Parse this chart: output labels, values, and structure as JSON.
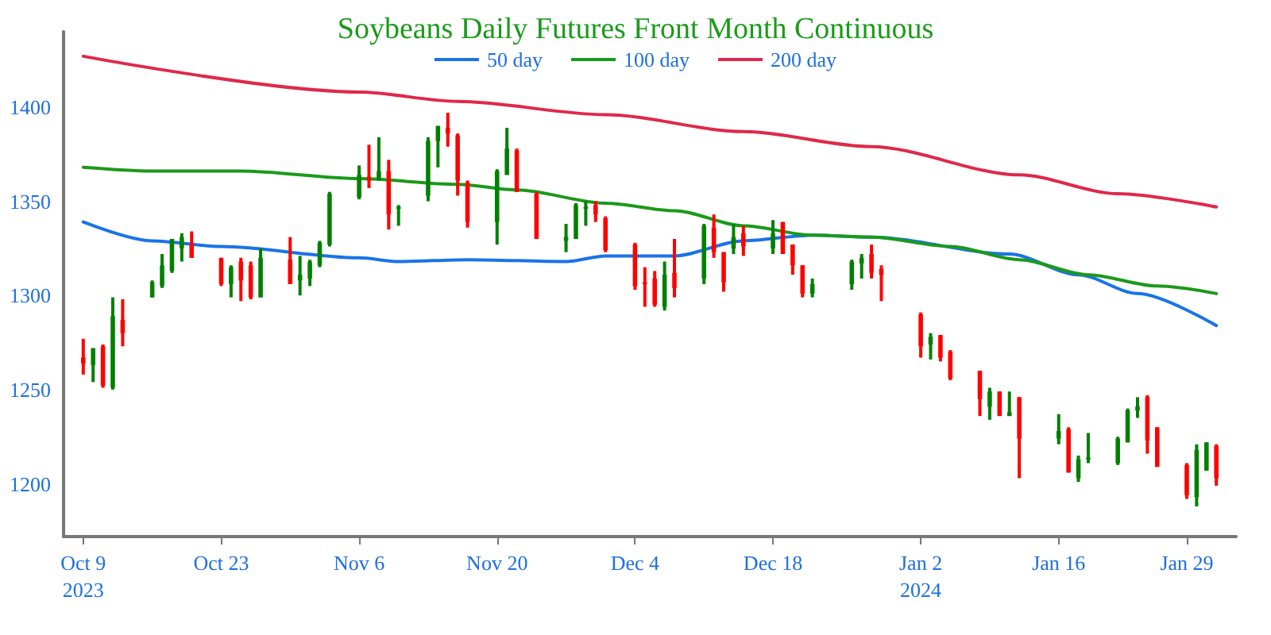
{
  "chart_data": {
    "type": "candlestick",
    "title": "Soybeans Daily Futures Front Month Continuous",
    "x": [
      "2023-10-09",
      "2023-10-10",
      "2023-10-11",
      "2023-10-12",
      "2023-10-13",
      "2023-10-16",
      "2023-10-17",
      "2023-10-18",
      "2023-10-19",
      "2023-10-20",
      "2023-10-23",
      "2023-10-24",
      "2023-10-25",
      "2023-10-26",
      "2023-10-27",
      "2023-10-30",
      "2023-10-31",
      "2023-11-01",
      "2023-11-02",
      "2023-11-03",
      "2023-11-06",
      "2023-11-07",
      "2023-11-08",
      "2023-11-09",
      "2023-11-10",
      "2023-11-13",
      "2023-11-14",
      "2023-11-15",
      "2023-11-16",
      "2023-11-17",
      "2023-11-20",
      "2023-11-21",
      "2023-11-22",
      "2023-11-24",
      "2023-11-27",
      "2023-11-28",
      "2023-11-29",
      "2023-11-30",
      "2023-12-01",
      "2023-12-04",
      "2023-12-05",
      "2023-12-06",
      "2023-12-07",
      "2023-12-08",
      "2023-12-11",
      "2023-12-12",
      "2023-12-13",
      "2023-12-14",
      "2023-12-15",
      "2023-12-18",
      "2023-12-19",
      "2023-12-20",
      "2023-12-21",
      "2023-12-22",
      "2023-12-26",
      "2023-12-27",
      "2023-12-28",
      "2023-12-29",
      "2024-01-02",
      "2024-01-03",
      "2024-01-04",
      "2024-01-05",
      "2024-01-08",
      "2024-01-09",
      "2024-01-10",
      "2024-01-11",
      "2024-01-12",
      "2024-01-16",
      "2024-01-17",
      "2024-01-18",
      "2024-01-19",
      "2024-01-22",
      "2024-01-23",
      "2024-01-24",
      "2024-01-25",
      "2024-01-26",
      "2024-01-29",
      "2024-01-30",
      "2024-01-31",
      "2024-02-01"
    ],
    "ohlc": [
      [
        1267,
        1277,
        1258,
        1264
      ],
      [
        1263,
        1272,
        1254,
        1272
      ],
      [
        1273,
        1274,
        1251,
        1252
      ],
      [
        1251,
        1299,
        1250,
        1289
      ],
      [
        1287,
        1298,
        1273,
        1280
      ],
      [
        1299,
        1308,
        1299,
        1307
      ],
      [
        1305,
        1322,
        1304,
        1316
      ],
      [
        1313,
        1330,
        1312,
        1330
      ],
      [
        1325,
        1333,
        1318,
        1331
      ],
      [
        1327,
        1334,
        1320,
        1320
      ],
      [
        1320,
        1320,
        1305,
        1306
      ],
      [
        1306,
        1316,
        1299,
        1315
      ],
      [
        1318,
        1320,
        1297,
        1308
      ],
      [
        1316,
        1318,
        1298,
        1299
      ],
      [
        1299,
        1325,
        1299,
        1320
      ],
      [
        1319,
        1331,
        1306,
        1306
      ],
      [
        1308,
        1321,
        1300,
        1311
      ],
      [
        1309,
        1319,
        1305,
        1318
      ],
      [
        1316,
        1329,
        1315,
        1328
      ],
      [
        1327,
        1355,
        1326,
        1354
      ],
      [
        1352,
        1369,
        1351,
        1364
      ],
      [
        1363,
        1380,
        1357,
        1361
      ],
      [
        1362,
        1384,
        1361,
        1366
      ],
      [
        1366,
        1372,
        1335,
        1343
      ],
      [
        1346,
        1348,
        1337,
        1347
      ],
      [
        1353,
        1384,
        1350,
        1382
      ],
      [
        1382,
        1390,
        1368,
        1390
      ],
      [
        1389,
        1397,
        1379,
        1386
      ],
      [
        1385,
        1386,
        1353,
        1361
      ],
      [
        1360,
        1361,
        1336,
        1339
      ],
      [
        1339,
        1367,
        1327,
        1366
      ],
      [
        1364,
        1389,
        1364,
        1378
      ],
      [
        1377,
        1378,
        1355,
        1355
      ],
      [
        1354,
        1355,
        1330,
        1330
      ],
      [
        1329,
        1338,
        1323,
        1331
      ],
      [
        1330,
        1349,
        1330,
        1348
      ],
      [
        1346,
        1350,
        1337,
        1347
      ],
      [
        1348,
        1350,
        1339,
        1343
      ],
      [
        1341,
        1342,
        1323,
        1324
      ],
      [
        1327,
        1328,
        1303,
        1305
      ],
      [
        1307,
        1315,
        1294,
        1306
      ],
      [
        1309,
        1313,
        1294,
        1295
      ],
      [
        1294,
        1318,
        1292,
        1311
      ],
      [
        1312,
        1330,
        1299,
        1304
      ],
      [
        1309,
        1338,
        1306,
        1337
      ],
      [
        1336,
        1343,
        1320,
        1323
      ],
      [
        1323,
        1323,
        1302,
        1307
      ],
      [
        1325,
        1338,
        1322,
        1331
      ],
      [
        1333,
        1337,
        1321,
        1326
      ],
      [
        1325,
        1340,
        1322,
        1333
      ],
      [
        1339,
        1339,
        1322,
        1322
      ],
      [
        1327,
        1327,
        1311,
        1316
      ],
      [
        1316,
        1316,
        1299,
        1301
      ],
      [
        1301,
        1309,
        1299,
        1306
      ],
      [
        1306,
        1319,
        1303,
        1318
      ],
      [
        1317,
        1322,
        1309,
        1320
      ],
      [
        1322,
        1327,
        1309,
        1312
      ],
      [
        1314,
        1316,
        1297,
        1311
      ],
      [
        1290,
        1291,
        1267,
        1273
      ],
      [
        1274,
        1280,
        1266,
        1278
      ],
      [
        1279,
        1279,
        1265,
        1267
      ],
      [
        1270,
        1271,
        1255,
        1256
      ],
      [
        1260,
        1260,
        1236,
        1245
      ],
      [
        1241,
        1251,
        1234,
        1249
      ],
      [
        1249,
        1249,
        1236,
        1236
      ],
      [
        1236,
        1249,
        1236,
        1238
      ],
      [
        1246,
        1246,
        1203,
        1224
      ],
      [
        1224,
        1237,
        1221,
        1228
      ],
      [
        1229,
        1230,
        1206,
        1206
      ],
      [
        1203,
        1215,
        1201,
        1213
      ],
      [
        1213,
        1227,
        1211,
        1214
      ],
      [
        1211,
        1225,
        1210,
        1224
      ],
      [
        1222,
        1240,
        1222,
        1239
      ],
      [
        1239,
        1246,
        1235,
        1241
      ],
      [
        1246,
        1247,
        1216,
        1223
      ],
      [
        1230,
        1230,
        1209,
        1209
      ],
      [
        1210,
        1211,
        1192,
        1194
      ],
      [
        1193,
        1221,
        1188,
        1218
      ],
      [
        1207,
        1222,
        1207,
        1222
      ],
      [
        1220,
        1221,
        1199,
        1203
      ]
    ],
    "colors": [
      "#ff0000",
      "#008000",
      "#ff0000",
      "#008000",
      "#ff0000",
      "#008000",
      "#008000",
      "#008000",
      "#008000",
      "#ff0000",
      "#ff0000",
      "#008000",
      "#ff0000",
      "#ff0000",
      "#008000",
      "#ff0000",
      "#008000",
      "#008000",
      "#008000",
      "#008000",
      "#008000",
      "#ff0000",
      "#008000",
      "#ff0000",
      "#008000",
      "#008000",
      "#008000",
      "#ff0000",
      "#ff0000",
      "#ff0000",
      "#008000",
      "#008000",
      "#ff0000",
      "#ff0000",
      "#008000",
      "#008000",
      "#008000",
      "#ff0000",
      "#ff0000",
      "#ff0000",
      "#ff0000",
      "#ff0000",
      "#008000",
      "#ff0000",
      "#008000",
      "#ff0000",
      "#ff0000",
      "#008000",
      "#ff0000",
      "#008000",
      "#ff0000",
      "#ff0000",
      "#ff0000",
      "#008000",
      "#008000",
      "#008000",
      "#ff0000",
      "#ff0000",
      "#ff0000",
      "#008000",
      "#ff0000",
      "#ff0000",
      "#ff0000",
      "#008000",
      "#ff0000",
      "#008000",
      "#ff0000",
      "#008000",
      "#ff0000",
      "#008000",
      "#008000",
      "#008000",
      "#008000",
      "#008000",
      "#ff0000",
      "#ff0000",
      "#ff0000",
      "#008000",
      "#008000",
      "#ff0000"
    ],
    "series": [
      {
        "name": "50 day",
        "type": "line",
        "color": "#1a73e8",
        "x": [
          "2023-10-09",
          "2023-10-16",
          "2023-10-23",
          "2023-11-06",
          "2023-11-10",
          "2023-11-17",
          "2023-11-27",
          "2023-12-01",
          "2023-12-08",
          "2023-12-15",
          "2023-12-22",
          "2023-12-28",
          "2024-01-11",
          "2024-01-18",
          "2024-01-24",
          "2024-02-01"
        ],
        "values": [
          1339,
          1329,
          1326,
          1320,
          1318,
          1319,
          1318,
          1321,
          1321,
          1329,
          1332,
          1331,
          1322,
          1311,
          1301,
          1284
        ]
      },
      {
        "name": "100 day",
        "type": "line",
        "color": "#1a9a1a",
        "x": [
          "2023-10-09",
          "2023-10-16",
          "2023-10-25",
          "2023-11-06",
          "2023-11-16",
          "2023-11-22",
          "2023-12-01",
          "2023-12-08",
          "2023-12-15",
          "2023-12-22",
          "2023-12-28",
          "2024-01-05",
          "2024-01-12",
          "2024-01-19",
          "2024-01-26",
          "2024-02-01"
        ],
        "values": [
          1368,
          1366,
          1366,
          1362,
          1359,
          1356,
          1349,
          1345,
          1337,
          1332,
          1331,
          1326,
          1319,
          1311,
          1305,
          1301
        ]
      },
      {
        "name": "200 day",
        "type": "line",
        "color": "#e0284a",
        "x": [
          "2023-10-09",
          "2023-11-06",
          "2023-11-16",
          "2023-12-01",
          "2023-12-15",
          "2023-12-28",
          "2024-01-12",
          "2024-01-22",
          "2024-02-01"
        ],
        "values": [
          1427,
          1408,
          1403,
          1396,
          1387,
          1379,
          1364,
          1354,
          1347
        ]
      }
    ],
    "ylim": [
      1172,
      1440
    ],
    "yticks": [
      1200,
      1250,
      1300,
      1350,
      1400
    ],
    "xticks": [
      {
        "value": "2023-10-09",
        "label": "Oct 9\n2023"
      },
      {
        "value": "2023-10-23",
        "label": "Oct 23"
      },
      {
        "value": "2023-11-06",
        "label": "Nov 6"
      },
      {
        "value": "2023-11-20",
        "label": "Nov 20"
      },
      {
        "value": "2023-12-04",
        "label": "Dec 4"
      },
      {
        "value": "2023-12-18",
        "label": "Dec 18"
      },
      {
        "value": "2024-01-02",
        "label": "Jan 2\n2024"
      },
      {
        "value": "2024-01-16",
        "label": "Jan 16"
      },
      {
        "value": "2024-01-29",
        "label": "Jan 29"
      }
    ],
    "xlim": [
      "2023-10-07",
      "2024-02-03"
    ],
    "legend": "top",
    "grid": false,
    "marker": "none"
  }
}
